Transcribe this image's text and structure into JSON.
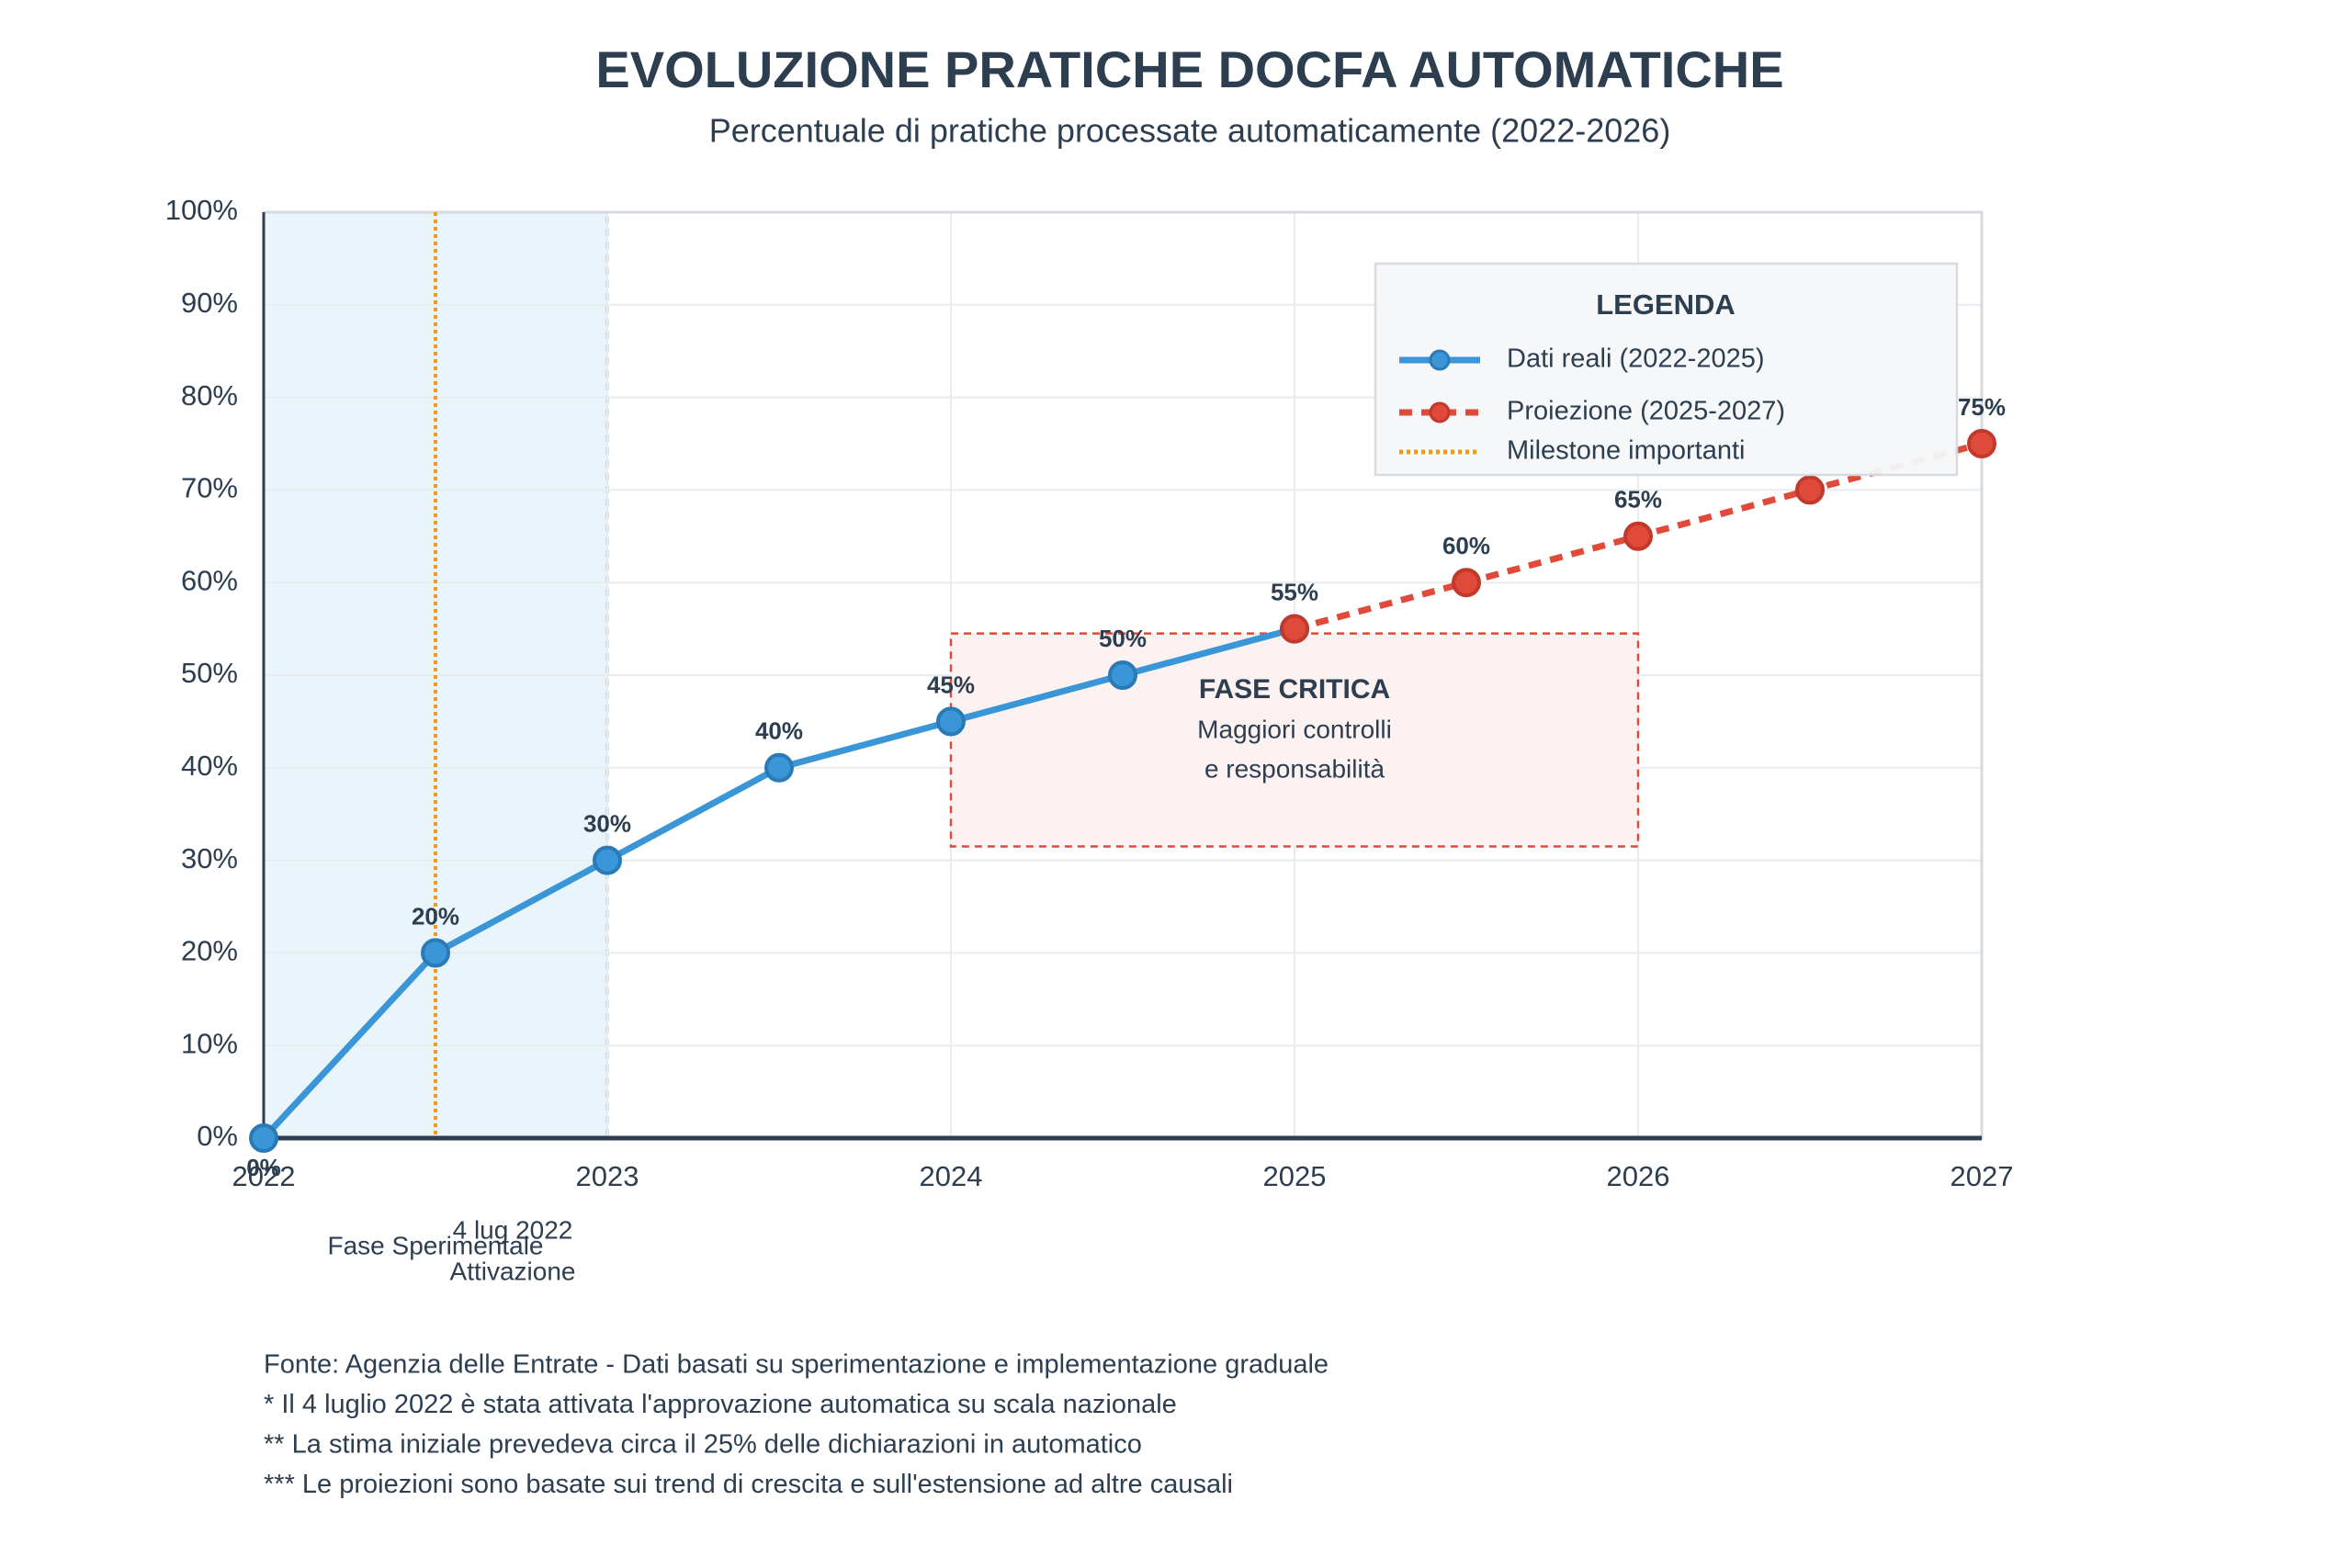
{
  "chart_data": {
    "type": "line",
    "title": "EVOLUZIONE PRATICHE DOCFA AUTOMATICHE",
    "subtitle": "Percentuale di pratiche processate automaticamente (2022-2026)",
    "xlim": [
      2022,
      2027
    ],
    "xticks": [
      2022,
      2023,
      2024,
      2025,
      2026,
      2027
    ],
    "ylim": [
      0,
      100
    ],
    "yticks": [
      {
        "value": 0,
        "label": "0%"
      },
      {
        "value": 10,
        "label": "10%"
      },
      {
        "value": 20,
        "label": "20%"
      },
      {
        "value": 30,
        "label": "30%"
      },
      {
        "value": 40,
        "label": "40%"
      },
      {
        "value": 50,
        "label": "50%"
      },
      {
        "value": 60,
        "label": "60%"
      },
      {
        "value": 70,
        "label": "70%"
      },
      {
        "value": 80,
        "label": "80%"
      },
      {
        "value": 90,
        "label": "90%"
      },
      {
        "value": 100,
        "label": "100%"
      }
    ],
    "grid": true,
    "series": [
      {
        "name": "Dati reali (2022-2025)",
        "color": "#3a96d6",
        "dashed": false,
        "x": [
          2022,
          2022.5,
          2023,
          2023.5,
          2024,
          2024.5,
          2025
        ],
        "values": [
          0,
          20,
          30,
          40,
          45,
          50,
          55
        ],
        "value_labels": [
          "0%",
          "20%",
          "30%",
          "40%",
          "45%",
          "50%",
          "55%"
        ]
      },
      {
        "name": "Proiezione (2025-2027)",
        "color": "#e04a3a",
        "dashed": true,
        "x": [
          2025,
          2025.5,
          2026,
          2026.5,
          2027
        ],
        "values": [
          55,
          60,
          65,
          70,
          75
        ],
        "value_labels": [
          null,
          "60%",
          "65%",
          null,
          "75%"
        ]
      }
    ],
    "legend": {
      "title": "LEGENDA",
      "position": "upper right"
    },
    "milestones": {
      "name": "Milestone importanti",
      "color": "#f39c12",
      "items": [
        {
          "x": 2022.5,
          "label": [
            "4 lug 2022",
            "Attivazione"
          ]
        }
      ]
    },
    "shaded_regions": [
      {
        "label": "Fase Sperimentale",
        "x": [
          2022,
          2023
        ]
      }
    ],
    "critical_box": {
      "x": [
        2024,
        2026
      ],
      "y": [
        31.5,
        54.5
      ],
      "title": "FASE CRITICA",
      "lines": [
        "Maggiori controlli",
        "e responsabilità"
      ]
    },
    "notes": [
      "Fonte: Agenzia delle Entrate - Dati basati su sperimentazione e implementazione graduale",
      "* Il 4 luglio 2022 è stata attivata l'approvazione automatica su scala nazionale",
      "** La stima iniziale prevedeva circa il 25% delle dichiarazioni in automatico",
      "*** Le proiezioni sono basate sui trend di crescita e sull'estensione ad altre causali"
    ]
  }
}
